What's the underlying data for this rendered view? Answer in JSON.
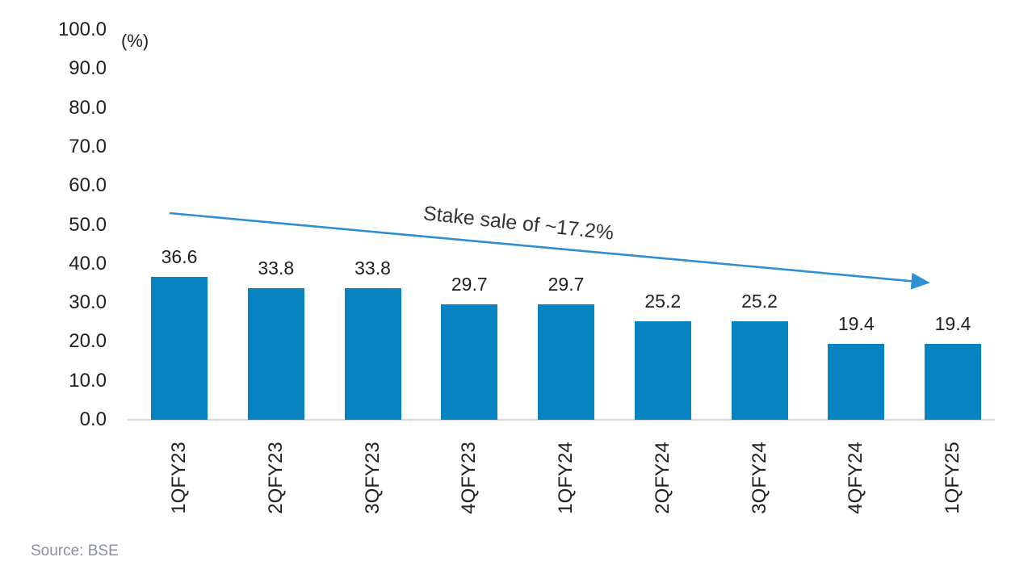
{
  "chart_data": {
    "type": "bar",
    "title": "",
    "unit_label": "(%)",
    "categories": [
      "1QFY23",
      "2QFY23",
      "3QFY23",
      "4QFY23",
      "1QFY24",
      "2QFY24",
      "3QFY24",
      "4QFY24",
      "1QFY25"
    ],
    "values": [
      36.6,
      33.8,
      33.8,
      29.7,
      29.7,
      25.2,
      25.2,
      19.4,
      19.4
    ],
    "value_labels": [
      "36.6",
      "33.8",
      "33.8",
      "29.7",
      "29.7",
      "25.2",
      "25.2",
      "19.4",
      "19.4"
    ],
    "ylim": [
      0,
      100
    ],
    "yticks": [
      "100.0",
      "90.0",
      "80.0",
      "70.0",
      "60.0",
      "50.0",
      "40.0",
      "30.0",
      "20.0",
      "10.0",
      "0.0"
    ],
    "annotation": "Stake sale of ~17.2%",
    "bar_color": "#0883c1",
    "arrow_color": "#2f8fd2",
    "grid": false,
    "legend": "none"
  },
  "footer": {
    "source": "Source: BSE"
  }
}
